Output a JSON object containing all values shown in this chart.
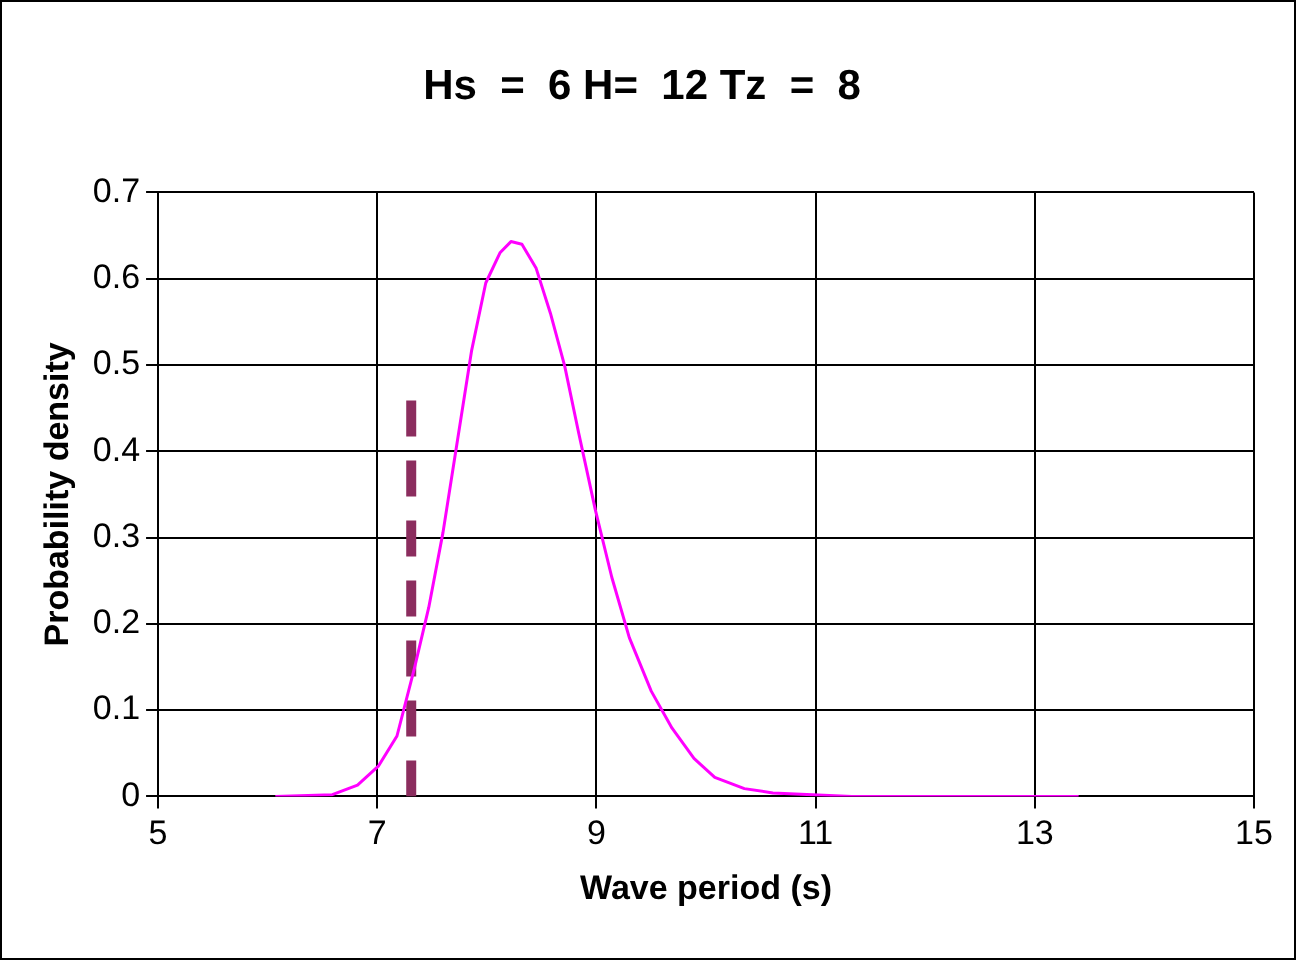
{
  "chart_data": {
    "type": "line",
    "title": "Hs  =  6 H=  12 Tz  =  8",
    "xlabel": "Wave period (s)",
    "ylabel": "Probability density",
    "xlim": [
      5,
      15
    ],
    "xticks": [
      5,
      7,
      9,
      11,
      13,
      15
    ],
    "ylim": [
      0,
      0.7
    ],
    "yticks": [
      0,
      0.1,
      0.2,
      0.3,
      0.4,
      0.5,
      0.6,
      0.7
    ],
    "grid": true,
    "legend": false,
    "marker": "none",
    "series": [
      {
        "color": "#ff00ff",
        "line_style": "solid",
        "x": [
          6.07,
          6.59,
          6.82,
          7.01,
          7.18,
          7.34,
          7.47,
          7.6,
          7.73,
          7.86,
          7.99,
          8.12,
          8.22,
          8.32,
          8.45,
          8.58,
          8.71,
          8.84,
          8.99,
          9.14,
          9.3,
          9.5,
          9.69,
          9.89,
          10.08,
          10.35,
          10.61,
          10.97,
          11.33,
          12.4,
          13.4
        ],
        "values": [
          0,
          0.002,
          0.013,
          0.035,
          0.07,
          0.149,
          0.219,
          0.306,
          0.411,
          0.516,
          0.595,
          0.63,
          0.643,
          0.64,
          0.612,
          0.56,
          0.499,
          0.42,
          0.332,
          0.254,
          0.184,
          0.122,
          0.079,
          0.044,
          0.022,
          0.009,
          0.004,
          0.002,
          0,
          0,
          0
        ]
      },
      {
        "color": "#8b2d5e",
        "line_style": "dashed",
        "x": [
          7.31,
          7.31
        ],
        "values": [
          0,
          0.46
        ]
      }
    ]
  }
}
